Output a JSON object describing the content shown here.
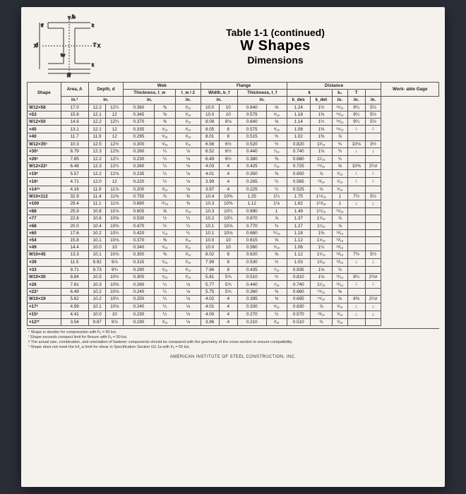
{
  "title": {
    "line1": "Table 1-1 (continued)",
    "line2": "W Shapes",
    "line3": "Dimensions"
  },
  "columns": {
    "shape": "Shape",
    "area": "Area,\nA",
    "depth": "Depth,\nd",
    "web_group": "Web",
    "web_thick": "Thickness,\nt_w",
    "web_half": "t_w / 2",
    "flange_group": "Flange",
    "flange_width": "Width,\nb_f",
    "flange_thick": "Thickness,\nt_f",
    "distance_group": "Distance",
    "k": "k",
    "k_des": "k_des",
    "k_det": "k_det",
    "k1": "k₁",
    "T": "T",
    "gage": "Work-\nable\nGage",
    "unit_in2": "in.²",
    "unit_in": "in."
  },
  "rows": [
    {
      "shape": "W12×58",
      "A": "17.0",
      "d1": "12.2",
      "d2": "12¼",
      "tw1": "0.360",
      "tw2": "⅜",
      "tw2b": "³⁄₁₆",
      "bf1": "10.0",
      "bf2": "10",
      "tf1": "0.640",
      "tf2": "⅝",
      "kdes": "1.24",
      "kdet": "1½",
      "k1": "¹⁵⁄₁₆",
      "T": "9¼",
      "gage": "5½"
    },
    {
      "shape": "×53",
      "A": "15.6",
      "d1": "12.1",
      "d2": "12",
      "tw1": "0.345",
      "tw2": "⅜",
      "tw2b": "³⁄₁₆",
      "bf1": "10.0",
      "bf2": "10",
      "tf1": "0.575",
      "tf2": "⁹⁄₁₆",
      "kdes": "1.18",
      "kdet": "1⅜",
      "k1": "¹⁵⁄₁₆",
      "T": "9¼",
      "gage": "5½"
    },
    {
      "sep": true,
      "shape": "W12×50",
      "A": "14.6",
      "d1": "12.2",
      "d2": "12¼",
      "tw1": "0.370",
      "tw2": "⅜",
      "tw2b": "³⁄₁₆",
      "bf1": "8.08",
      "bf2": "8⅛",
      "tf1": "0.640",
      "tf2": "⅝",
      "kdes": "1.14",
      "kdet": "1½",
      "k1": "¹⁵⁄₁₆",
      "T": "9¼",
      "gage": "5½"
    },
    {
      "shape": "×45",
      "A": "13.1",
      "d1": "12.1",
      "d2": "12",
      "tw1": "0.335",
      "tw2": "⁵⁄₁₆",
      "tw2b": "³⁄₁₆",
      "bf1": "8.05",
      "bf2": "8",
      "tf1": "0.575",
      "tf2": "⁹⁄₁₆",
      "kdes": "1.08",
      "kdet": "1⅜",
      "k1": "¹⁵⁄₁₆",
      "T": "↓",
      "gage": "↓"
    },
    {
      "shape": "×40",
      "A": "11.7",
      "d1": "11.9",
      "d2": "12",
      "tw1": "0.295",
      "tw2": "⁵⁄₁₆",
      "tw2b": "³⁄₁₆",
      "bf1": "8.01",
      "bf2": "8",
      "tf1": "0.515",
      "tf2": "½",
      "kdes": "1.02",
      "kdet": "1⅜",
      "k1": "⅞",
      "T": "",
      "gage": ""
    },
    {
      "sep": true,
      "shape": "W12×35ᶜ",
      "A": "10.3",
      "d1": "12.5",
      "d2": "12½",
      "tw1": "0.300",
      "tw2": "⁵⁄₁₆",
      "tw2b": "³⁄₁₆",
      "bf1": "6.56",
      "bf2": "6½",
      "tf1": "0.520",
      "tf2": "½",
      "kdes": "0.820",
      "kdet": "1³⁄₁₆",
      "k1": "¾",
      "T": "10⅛",
      "gage": "3½"
    },
    {
      "shape": "×30ᶜ",
      "A": "8.79",
      "d1": "12.3",
      "d2": "12⅜",
      "tw1": "0.260",
      "tw2": "¼",
      "tw2b": "⅛",
      "bf1": "6.52",
      "bf2": "6½",
      "tf1": "0.440",
      "tf2": "⁷⁄₁₆",
      "kdes": "0.740",
      "kdet": "1⅛",
      "k1": "¾",
      "T": "↓",
      "gage": "↓"
    },
    {
      "shape": "×26ᶜ",
      "A": "7.65",
      "d1": "12.2",
      "d2": "12¼",
      "tw1": "0.230",
      "tw2": "¼",
      "tw2b": "⅛",
      "bf1": "6.49",
      "bf2": "6½",
      "tf1": "0.380",
      "tf2": "⅜",
      "kdes": "0.680",
      "kdet": "1¹⁄₁₆",
      "k1": "¾",
      "T": "",
      "gage": ""
    },
    {
      "sep": true,
      "shape": "W12×22ᶜ",
      "A": "6.48",
      "d1": "12.3",
      "d2": "12¼",
      "tw1": "0.260",
      "tw2": "¼",
      "tw2b": "⅛",
      "bf1": "4.03",
      "bf2": "4",
      "tf1": "0.425",
      "tf2": "⁷⁄₁₆",
      "kdes": "0.725",
      "kdet": "¹⁵⁄₁₆",
      "k1": "⅝",
      "T": "10⅜",
      "gage": "2¼ᵍ"
    },
    {
      "shape": "×19ᶜ",
      "A": "5.57",
      "d1": "12.2",
      "d2": "12⅛",
      "tw1": "0.235",
      "tw2": "¼",
      "tw2b": "⅛",
      "bf1": "4.01",
      "bf2": "4",
      "tf1": "0.350",
      "tf2": "⅜",
      "kdes": "0.650",
      "kdet": "⅞",
      "k1": "⁹⁄₁₆",
      "T": "↓",
      "gage": "↓"
    },
    {
      "shape": "×16ᶜ",
      "A": "4.71",
      "d1": "12.0",
      "d2": "12",
      "tw1": "0.220",
      "tw2": "¼",
      "tw2b": "⅛",
      "bf1": "3.99",
      "bf2": "4",
      "tf1": "0.265",
      "tf2": "¼",
      "kdes": "0.565",
      "kdet": "¹³⁄₁₆",
      "k1": "⁹⁄₁₆",
      "T": "↓",
      "gage": "↓"
    },
    {
      "shape": "×14ᶜᵛ",
      "A": "4.16",
      "d1": "11.9",
      "d2": "11⅞",
      "tw1": "0.200",
      "tw2": "³⁄₁₆",
      "tw2b": "⅛",
      "bf1": "3.97",
      "bf2": "4",
      "tf1": "0.225",
      "tf2": "¼",
      "kdes": "0.525",
      "kdet": "¾",
      "k1": "⁹⁄₁₆",
      "T": "",
      "gage": ""
    },
    {
      "sep": true,
      "shape": "W10×112",
      "A": "32.9",
      "d1": "11.4",
      "d2": "11⅜",
      "tw1": "0.755",
      "tw2": "¾",
      "tw2b": "⅜",
      "bf1": "10.4",
      "bf2": "10⅜",
      "tf1": "1.25",
      "tf2": "1¼",
      "kdes": "1.75",
      "kdet": "1¹⁵⁄₁₆",
      "k1": "1",
      "T": "7½",
      "gage": "5½"
    },
    {
      "shape": "×100",
      "A": "29.4",
      "d1": "11.1",
      "d2": "11⅛",
      "tw1": "0.680",
      "tw2": "¹¹⁄₁₆",
      "tw2b": "⅜",
      "bf1": "10.3",
      "bf2": "10⅜",
      "tf1": "1.12",
      "tf2": "1⅛",
      "kdes": "1.62",
      "kdet": "1¹³⁄₁₆",
      "k1": "1",
      "T": "↓",
      "gage": "↓"
    },
    {
      "shape": "×88",
      "A": "25.9",
      "d1": "10.8",
      "d2": "10⅞",
      "tw1": "0.605",
      "tw2": "⅝",
      "tw2b": "⁵⁄₁₆",
      "bf1": "10.3",
      "bf2": "10¼",
      "tf1": "0.990",
      "tf2": "1",
      "kdes": "1.49",
      "kdet": "1¹¹⁄₁₆",
      "k1": "¹⁵⁄₁₆",
      "T": "",
      "gage": ""
    },
    {
      "shape": "×77",
      "A": "22.6",
      "d1": "10.6",
      "d2": "10⅝",
      "tw1": "0.530",
      "tw2": "½",
      "tw2b": "¼",
      "bf1": "10.2",
      "bf2": "10¼",
      "tf1": "0.870",
      "tf2": "⅞",
      "kdes": "1.37",
      "kdet": "1⁹⁄₁₆",
      "k1": "⅞",
      "T": "",
      "gage": ""
    },
    {
      "shape": "×68",
      "A": "20.0",
      "d1": "10.4",
      "d2": "10⅜",
      "tw1": "0.470",
      "tw2": "½",
      "tw2b": "¼",
      "bf1": "10.1",
      "bf2": "10⅛",
      "tf1": "0.770",
      "tf2": "¾",
      "kdes": "1.27",
      "kdet": "1⁷⁄₁₆",
      "k1": "⅞",
      "T": "",
      "gage": ""
    },
    {
      "shape": "×60",
      "A": "17.6",
      "d1": "10.2",
      "d2": "10¼",
      "tw1": "0.420",
      "tw2": "⁷⁄₁₆",
      "tw2b": "¼",
      "bf1": "10.1",
      "bf2": "10⅛",
      "tf1": "0.680",
      "tf2": "¹¹⁄₁₆",
      "kdes": "1.18",
      "kdet": "1⅜",
      "k1": "¹³⁄₁₆",
      "T": "",
      "gage": ""
    },
    {
      "shape": "×54",
      "A": "15.8",
      "d1": "10.1",
      "d2": "10⅛",
      "tw1": "0.370",
      "tw2": "⅜",
      "tw2b": "³⁄₁₆",
      "bf1": "10.0",
      "bf2": "10",
      "tf1": "0.615",
      "tf2": "⅝",
      "kdes": "1.12",
      "kdet": "1⁵⁄₁₆",
      "k1": "¹³⁄₁₆",
      "T": "",
      "gage": ""
    },
    {
      "shape": "×49",
      "A": "14.4",
      "d1": "10.0",
      "d2": "10",
      "tw1": "0.340",
      "tw2": "⁵⁄₁₆",
      "tw2b": "³⁄₁₆",
      "bf1": "10.0",
      "bf2": "10",
      "tf1": "0.560",
      "tf2": "⁹⁄₁₆",
      "kdes": "1.06",
      "kdet": "1¼",
      "k1": "¹³⁄₁₆",
      "T": "",
      "gage": ""
    },
    {
      "sep": true,
      "shape": "W10×45",
      "A": "13.3",
      "d1": "10.1",
      "d2": "10⅛",
      "tw1": "0.350",
      "tw2": "⅜",
      "tw2b": "³⁄₁₆",
      "bf1": "8.02",
      "bf2": "8",
      "tf1": "0.620",
      "tf2": "⅝",
      "kdes": "1.12",
      "kdet": "1⁵⁄₁₆",
      "k1": "¹³⁄₁₆",
      "T": "7½",
      "gage": "5½"
    },
    {
      "shape": "×39",
      "A": "11.5",
      "d1": "9.92",
      "d2": "9⅞",
      "tw1": "0.315",
      "tw2": "⁵⁄₁₆",
      "tw2b": "³⁄₁₆",
      "bf1": "7.99",
      "bf2": "8",
      "tf1": "0.530",
      "tf2": "½",
      "kdes": "1.03",
      "kdet": "1³⁄₁₆",
      "k1": "¹³⁄₁₆",
      "T": "↓",
      "gage": "↓"
    },
    {
      "shape": "×33",
      "A": "9.71",
      "d1": "9.73",
      "d2": "9¾",
      "tw1": "0.290",
      "tw2": "⁵⁄₁₆",
      "tw2b": "³⁄₁₆",
      "bf1": "7.96",
      "bf2": "8",
      "tf1": "0.435",
      "tf2": "⁷⁄₁₆",
      "kdes": "0.935",
      "kdet": "1⅛",
      "k1": "¾",
      "T": "",
      "gage": ""
    },
    {
      "sep": true,
      "shape": "W10×30",
      "A": "8.84",
      "d1": "10.5",
      "d2": "10½",
      "tw1": "0.300",
      "tw2": "⁵⁄₁₆",
      "tw2b": "³⁄₁₆",
      "bf1": "5.81",
      "bf2": "5¾",
      "tf1": "0.510",
      "tf2": "½",
      "kdes": "0.810",
      "kdet": "1⅛",
      "k1": "¹¹⁄₁₆",
      "T": "8¼",
      "gage": "2¾ᵍ"
    },
    {
      "shape": "×26",
      "A": "7.61",
      "d1": "10.3",
      "d2": "10⅜",
      "tw1": "0.260",
      "tw2": "¼",
      "tw2b": "⅛",
      "bf1": "5.77",
      "bf2": "5¾",
      "tf1": "0.440",
      "tf2": "⁷⁄₁₆",
      "kdes": "0.740",
      "kdet": "1¹⁄₁₆",
      "k1": "¹¹⁄₁₆",
      "T": "↓",
      "gage": "↓"
    },
    {
      "shape": "×22ᶜ",
      "A": "6.49",
      "d1": "10.2",
      "d2": "10⅛",
      "tw1": "0.240",
      "tw2": "¼",
      "tw2b": "⅛",
      "bf1": "5.75",
      "bf2": "5¾",
      "tf1": "0.360",
      "tf2": "⅜",
      "kdes": "0.660",
      "kdet": "¹⁵⁄₁₆",
      "k1": "⅝",
      "T": "",
      "gage": ""
    },
    {
      "sep": true,
      "shape": "W10×19",
      "A": "5.62",
      "d1": "10.2",
      "d2": "10¼",
      "tw1": "0.250",
      "tw2": "¼",
      "tw2b": "⅛",
      "bf1": "4.02",
      "bf2": "4",
      "tf1": "0.395",
      "tf2": "⅜",
      "kdes": "0.695",
      "kdet": "¹⁵⁄₁₆",
      "k1": "⅝",
      "T": "8⅜",
      "gage": "2¼ᵍ"
    },
    {
      "shape": "×17ᶜ",
      "A": "4.99",
      "d1": "10.1",
      "d2": "10⅛",
      "tw1": "0.240",
      "tw2": "¼",
      "tw2b": "⅛",
      "bf1": "4.01",
      "bf2": "4",
      "tf1": "0.330",
      "tf2": "⁵⁄₁₆",
      "kdes": "0.630",
      "kdet": "⅞",
      "k1": "⁹⁄₁₆",
      "T": "↓",
      "gage": "↓"
    },
    {
      "shape": "×15ᶜ",
      "A": "4.41",
      "d1": "10.0",
      "d2": "10",
      "tw1": "0.230",
      "tw2": "¼",
      "tw2b": "⅛",
      "bf1": "4.00",
      "bf2": "4",
      "tf1": "0.270",
      "tf2": "¼",
      "kdes": "0.570",
      "kdet": "¹³⁄₁₆",
      "k1": "⁹⁄₁₆",
      "T": "↓",
      "gage": "↓"
    },
    {
      "shape": "×12ᶜᶠ",
      "A": "3.54",
      "d1": "9.87",
      "d2": "9⅞",
      "tw1": "0.190",
      "tw2": "³⁄₁₆",
      "tw2b": "⅛",
      "bf1": "3.96",
      "bf2": "4",
      "tf1": "0.210",
      "tf2": "³⁄₁₆",
      "kdes": "0.510",
      "kdet": "¾",
      "k1": "⁹⁄₁₆",
      "T": "",
      "gage": ""
    }
  ],
  "footnotes": [
    "ᶜ Shape is slender for compression with Fᵧ = 50 ksi.",
    "ᶠ Shape exceeds compact limit for flexure with Fᵧ = 50 ksi.",
    "ᵍ The actual size, combination, and orientation of fastener components should be compared with the geometry of the cross-section to ensure compatibility.",
    "ᵛ Shape does not meet the h/t_w limit for shear in Specification Section G2.1a with Fᵧ = 50 ksi."
  ],
  "footer": "AMERICAN INSTITUTE OF STEEL CONSTRUCTION, INC."
}
